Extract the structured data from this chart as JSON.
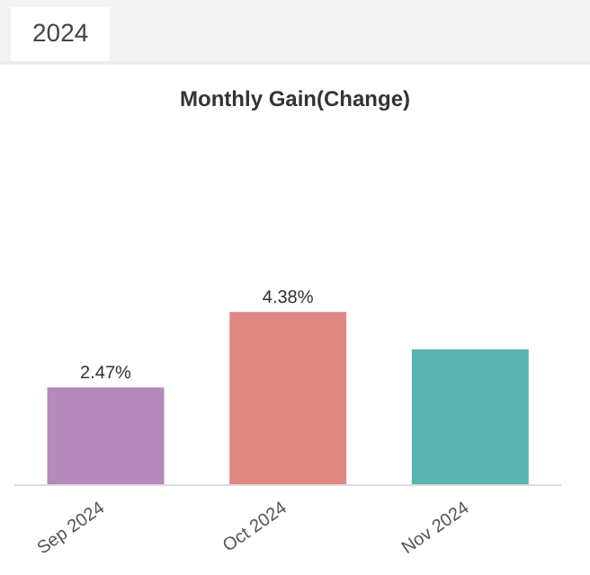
{
  "chart_data": {
    "type": "bar",
    "title": "Monthly Gain(Change)",
    "annotations": [
      "2024"
    ],
    "categories": [
      "Sep 2024",
      "Oct 2024",
      "Nov 2024"
    ],
    "values": [
      2.47,
      4.38,
      3.44
    ],
    "colors": [
      "#b589b9",
      "#e08784",
      "#5ab4b0"
    ],
    "value_labels": [
      "2.47%",
      "4.38%",
      null
    ]
  }
}
